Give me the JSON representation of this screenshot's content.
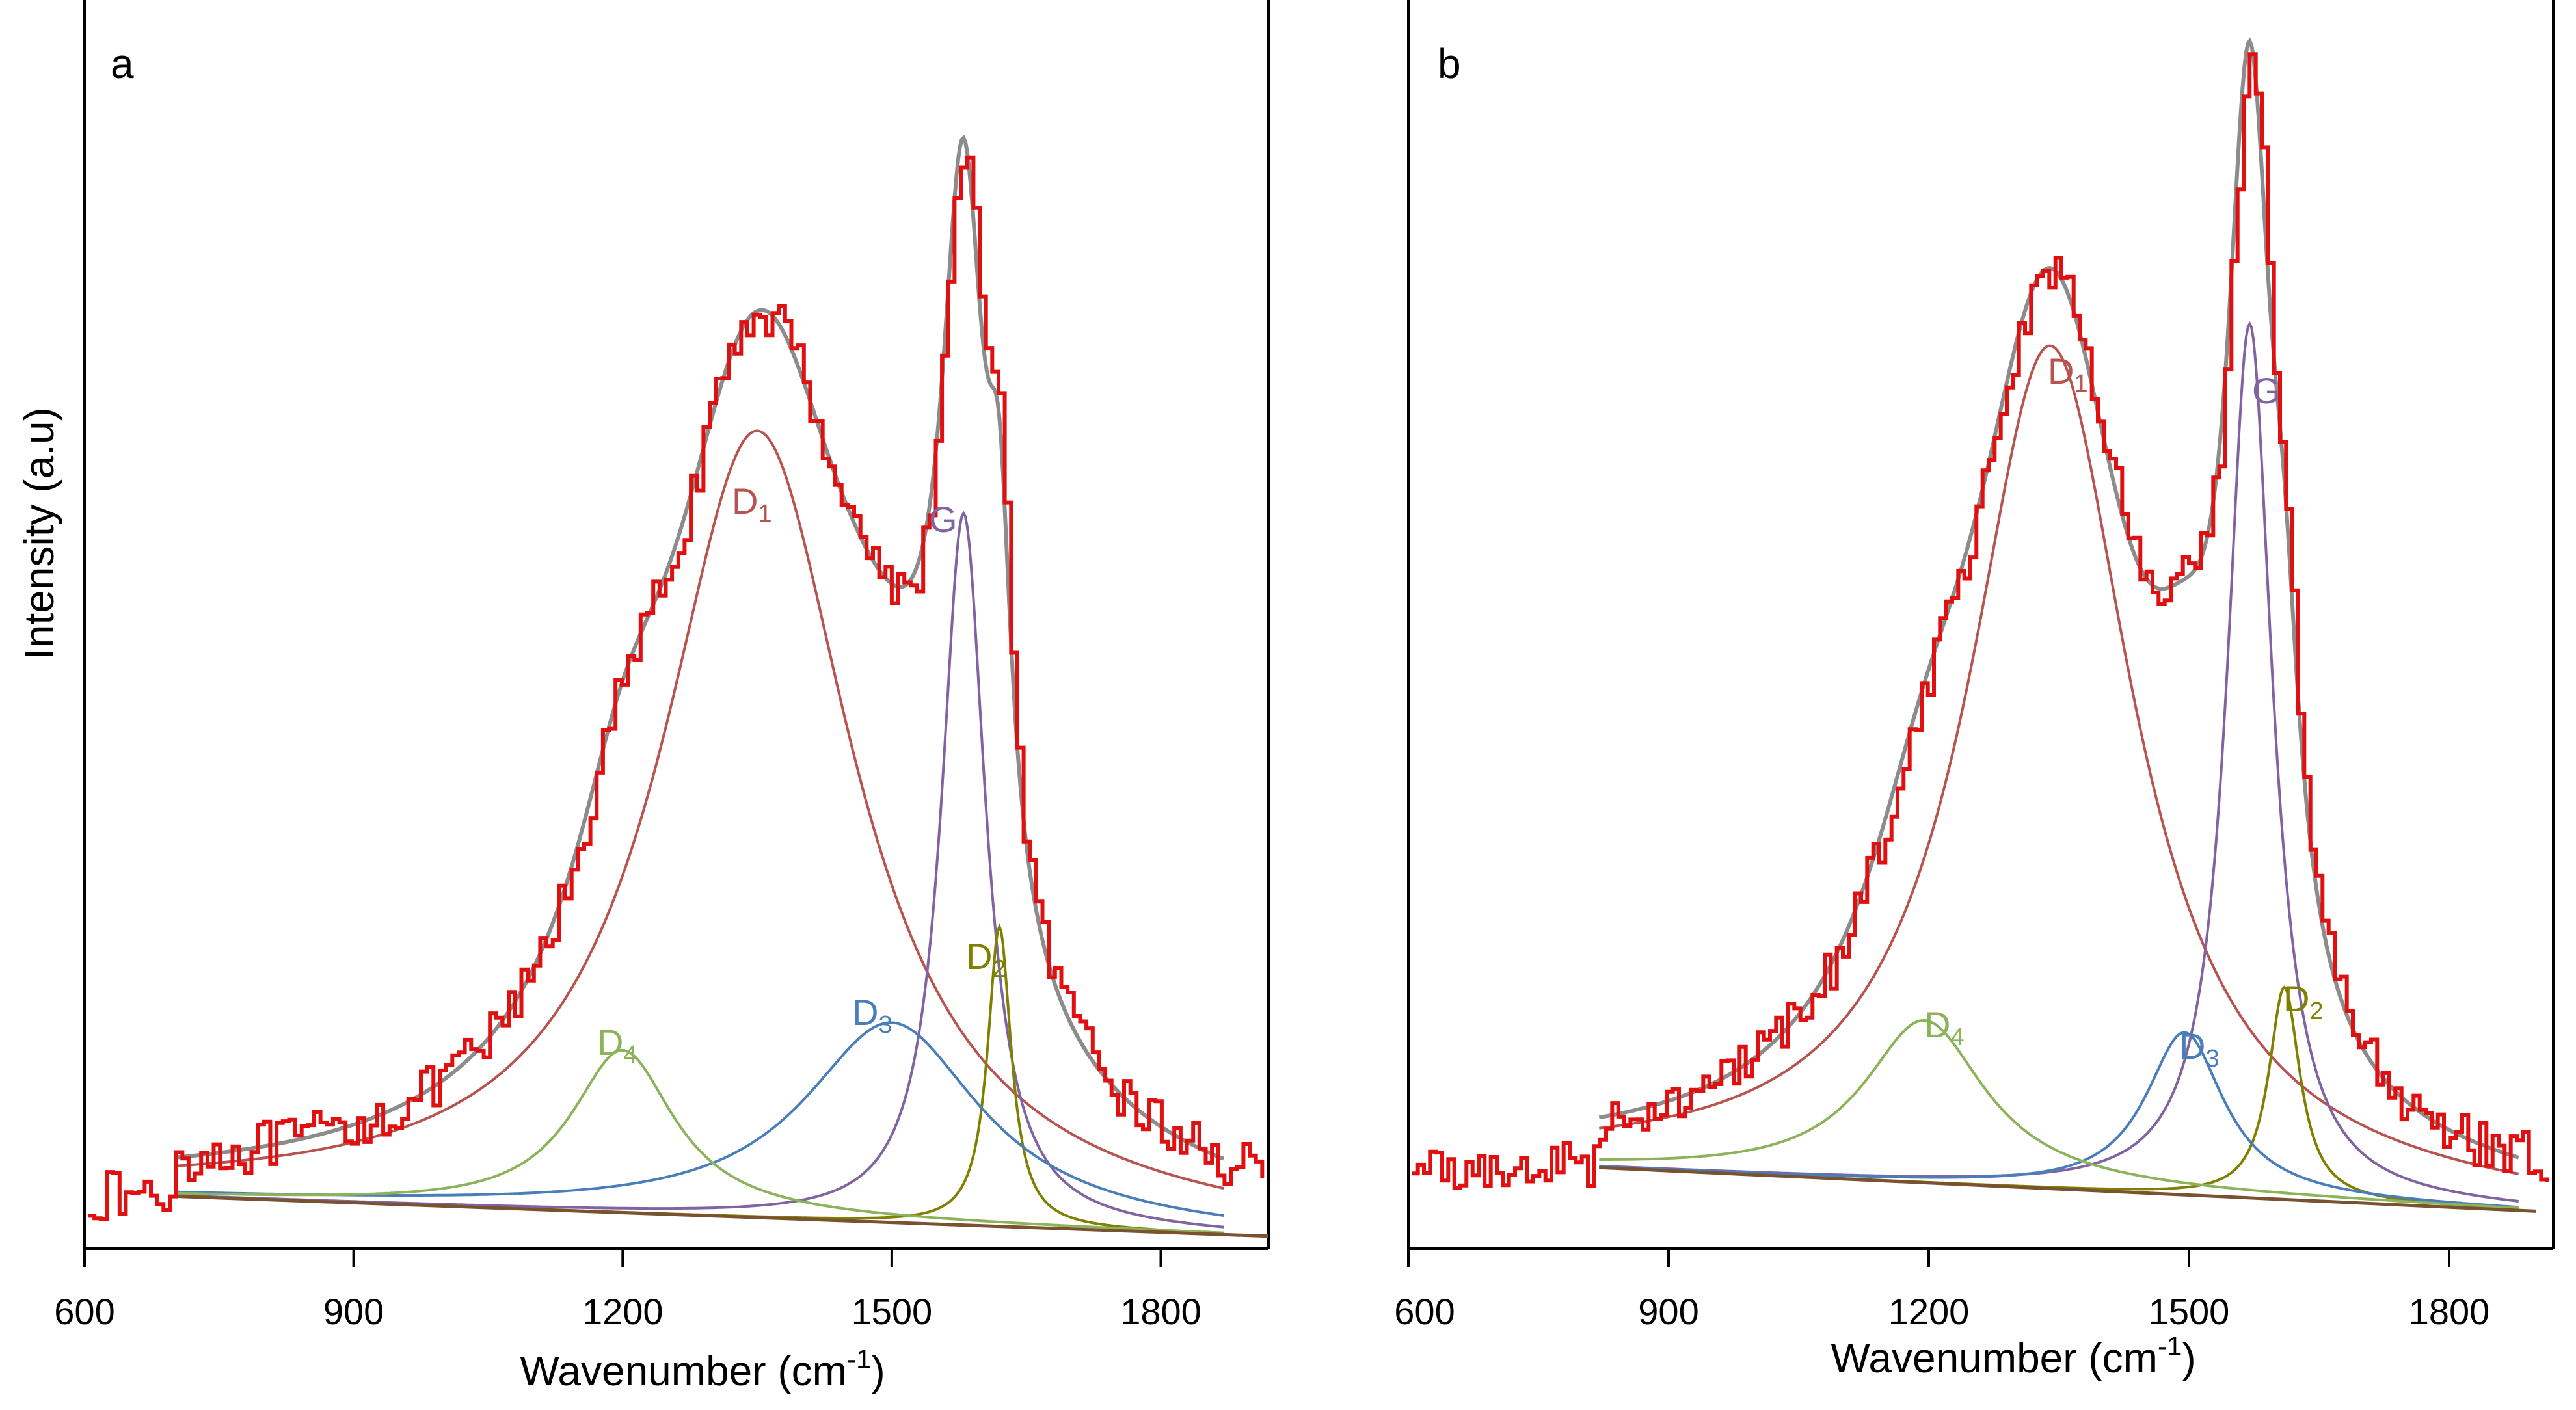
{
  "chart_data": [
    {
      "type": "line",
      "panel": "a",
      "xlabel": "Wavenumber (cm-1)",
      "ylabel": "Intensity (a.u)",
      "xlim": [
        600,
        1920
      ],
      "ylim": [
        0,
        1.0
      ],
      "x_ticks": [
        600,
        900,
        1200,
        1500,
        1800
      ],
      "tick_labels": [
        "600",
        "900",
        "1200",
        "1500",
        "1800"
      ],
      "baseline": [
        [
          700,
          0.042
        ],
        [
          1920,
          0.01
        ]
      ],
      "fit_range": [
        700,
        1870
      ],
      "peaks": [
        {
          "name": "D1",
          "label": "D",
          "sub": "1",
          "center": 1350,
          "height": 0.63,
          "hwhm": 130,
          "color": "#b85450"
        },
        {
          "name": "G",
          "label": "G",
          "sub": "",
          "center": 1580,
          "height": 0.57,
          "hwhm": 30,
          "color": "#8064a2"
        },
        {
          "name": "D2",
          "label": "D",
          "sub": "2",
          "center": 1620,
          "height": 0.24,
          "hwhm": 16,
          "color": "#808000"
        },
        {
          "name": "D3",
          "label": "D",
          "sub": "3",
          "center": 1500,
          "height": 0.16,
          "hwhm": 120,
          "color": "#4a7ebb"
        },
        {
          "name": "D4",
          "label": "D",
          "sub": "4",
          "center": 1200,
          "height": 0.13,
          "hwhm": 70,
          "color": "#8db35a"
        }
      ],
      "series": [
        {
          "name": "Measured spectrum",
          "color": "#e01010"
        },
        {
          "name": "Cumulative fit",
          "color": "#8c8c8c"
        },
        {
          "name": "Baseline",
          "color": "#7a5230"
        }
      ]
    },
    {
      "type": "line",
      "panel": "b",
      "xlabel": "Wavenumber (cm-1)",
      "ylabel": "",
      "xlim": [
        600,
        1920
      ],
      "ylim": [
        0,
        1.0
      ],
      "x_ticks": [
        600,
        900,
        1200,
        1500,
        1800
      ],
      "tick_labels": [
        "600",
        "900",
        "1200",
        "1500",
        "1800"
      ],
      "baseline": [
        [
          820,
          0.065
        ],
        [
          1900,
          0.03
        ]
      ],
      "fit_range": [
        820,
        1880
      ],
      "peaks": [
        {
          "name": "D1",
          "label": "D",
          "sub": "1",
          "center": 1340,
          "height": 0.675,
          "hwhm": 115,
          "color": "#b85450"
        },
        {
          "name": "G",
          "label": "G",
          "sub": "",
          "center": 1570,
          "height": 0.7,
          "hwhm": 32,
          "color": "#8064a2"
        },
        {
          "name": "D2",
          "label": "D",
          "sub": "2",
          "center": 1610,
          "height": 0.17,
          "hwhm": 22,
          "color": "#808000"
        },
        {
          "name": "D3",
          "label": "D",
          "sub": "3",
          "center": 1495,
          "height": 0.13,
          "hwhm": 55,
          "color": "#4a7ebb"
        },
        {
          "name": "D4",
          "label": "D",
          "sub": "4",
          "center": 1195,
          "height": 0.13,
          "hwhm": 85,
          "color": "#8db35a"
        }
      ],
      "series": [
        {
          "name": "Measured spectrum",
          "color": "#e01010"
        },
        {
          "name": "Cumulative fit",
          "color": "#8c8c8c"
        },
        {
          "name": "Baseline",
          "color": "#7a5230"
        }
      ]
    }
  ]
}
